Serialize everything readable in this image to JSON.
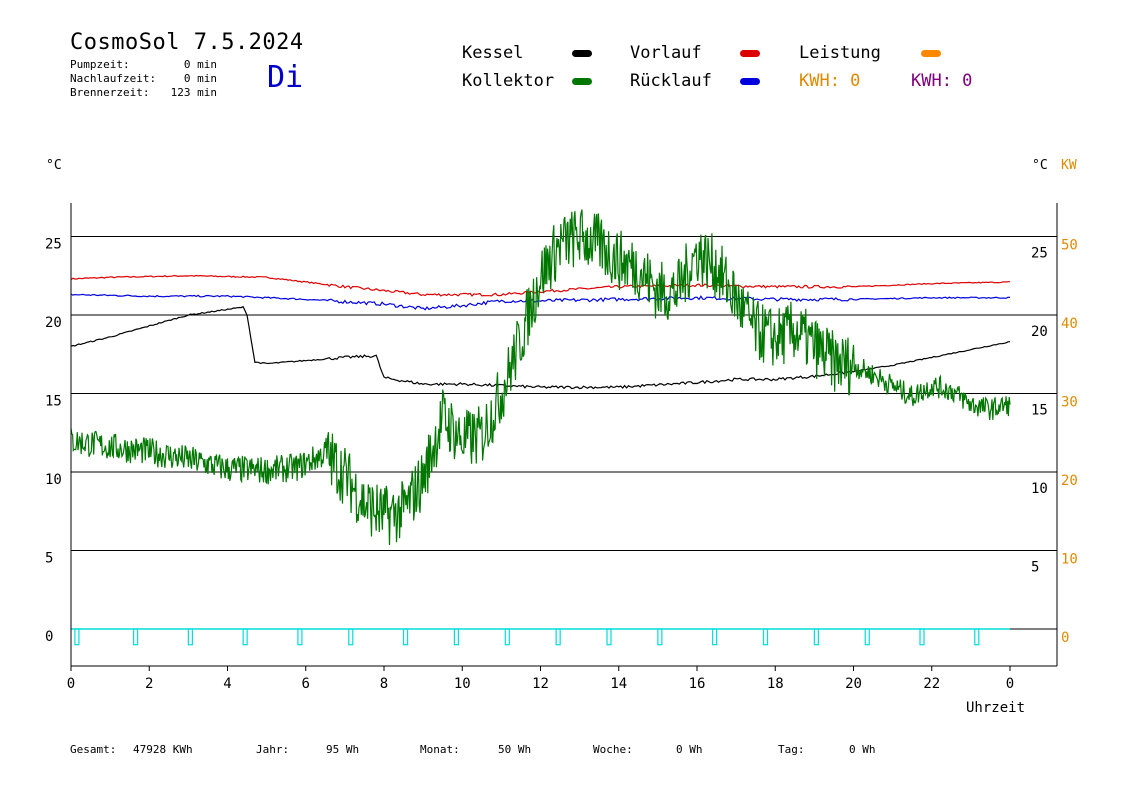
{
  "header": {
    "title": "CosmoSol 7.5.2024",
    "day": "Di",
    "stats": [
      {
        "label": "Pumpzeit:",
        "value": "0 min"
      },
      {
        "label": "Nachlaufzeit:",
        "value": "0 min"
      },
      {
        "label": "Brennerzeit:",
        "value": "123 min"
      }
    ]
  },
  "legend": {
    "kessel": "Kessel",
    "kollektor": "Kollektor",
    "vorlauf": "Vorlauf",
    "ruecklauf": "Rücklauf",
    "leistung": "Leistung",
    "kwh1": "KWH: 0",
    "kwh2": "KWH: 0"
  },
  "colors": {
    "kessel": "#000000",
    "kollektor": "#007700",
    "vorlauf": "#dd0000",
    "ruecklauf": "#0000dd",
    "leistung": "#ff8800",
    "kwh1": "#e08a00",
    "kwh2": "#800080",
    "pump": "#00dddd",
    "orange_axis": "#e08a00"
  },
  "units": {
    "left": "°C",
    "right_c": "°C",
    "right_kw": "KW"
  },
  "footer": {
    "gesamt_label": "Gesamt:",
    "gesamt_value": "47928 KWh",
    "jahr_label": "Jahr:",
    "jahr_value": "95 Wh",
    "monat_label": "Monat:",
    "monat_value": "50 Wh",
    "woche_label": "Woche:",
    "woche_value": "0 Wh",
    "tag_label": "Tag:",
    "tag_value": "0 Wh"
  },
  "chart_data": {
    "type": "line",
    "xlabel": "Uhrzeit",
    "x_ticks": [
      "0",
      "2",
      "4",
      "6",
      "8",
      "10",
      "12",
      "14",
      "16",
      "18",
      "20",
      "22",
      "0"
    ],
    "left_ticks": [
      "0",
      "5",
      "10",
      "15",
      "20",
      "25"
    ],
    "right_c_ticks": [
      "5",
      "10",
      "15",
      "20",
      "25"
    ],
    "right_kw_ticks": [
      "0",
      "10",
      "20",
      "30",
      "40",
      "50"
    ],
    "xlim": [
      0,
      24
    ],
    "ylim": [
      -2,
      27
    ],
    "grid_lines_y": [
      0,
      5,
      10,
      15,
      20,
      25
    ],
    "series": [
      {
        "name": "Vorlauf",
        "color_key": "vorlauf",
        "x": [
          0,
          1,
          3,
          5,
          7,
          9,
          11,
          12,
          14,
          16,
          18,
          20,
          22,
          24
        ],
        "y": [
          22.3,
          22.4,
          22.5,
          22.4,
          21.8,
          21.3,
          21.3,
          21.5,
          21.8,
          21.9,
          21.8,
          21.8,
          22.0,
          22.1
        ]
      },
      {
        "name": "Rücklauf",
        "color_key": "ruecklauf",
        "x": [
          0,
          2,
          4,
          6,
          8,
          9,
          10,
          11,
          12,
          14,
          16,
          18,
          20,
          22,
          24
        ],
        "y": [
          21.3,
          21.2,
          21.2,
          21.0,
          20.7,
          20.4,
          20.6,
          20.9,
          20.9,
          21.0,
          21.1,
          21.0,
          21.0,
          21.1,
          21.1
        ]
      },
      {
        "name": "Kessel",
        "color_key": "kessel",
        "x": [
          0,
          1,
          2,
          3,
          4.4,
          4.5,
          4.7,
          5,
          6,
          7,
          7.8,
          8,
          9,
          10,
          12,
          14,
          16,
          17,
          18,
          19,
          20,
          21,
          22,
          23,
          24
        ],
        "y": [
          18.0,
          18.6,
          19.3,
          20.0,
          20.5,
          20.0,
          17.0,
          16.9,
          17.1,
          17.3,
          17.4,
          16.0,
          15.6,
          15.6,
          15.4,
          15.4,
          15.7,
          15.9,
          15.9,
          16.1,
          16.4,
          16.8,
          17.3,
          17.8,
          18.3
        ]
      },
      {
        "name": "Kollektor",
        "color_key": "kollektor",
        "x": [
          0,
          1,
          2,
          3,
          4,
          5,
          5.8,
          6.5,
          7,
          7.5,
          8,
          8.5,
          9,
          9.5,
          10,
          10.5,
          11,
          11.5,
          12,
          12.5,
          13,
          13.5,
          14,
          14.5,
          15,
          15.5,
          16,
          16.5,
          17,
          17.5,
          18,
          18.5,
          19,
          19.5,
          20,
          20.5,
          21,
          21.5,
          22,
          22.5,
          23,
          23.5,
          24
        ],
        "y": [
          12.0,
          11.6,
          11.3,
          10.8,
          10.2,
          10.1,
          10.3,
          11.2,
          9.8,
          8.0,
          7.2,
          7.5,
          9.6,
          13.5,
          12.0,
          12.3,
          15.0,
          18.5,
          22.5,
          24.5,
          25.0,
          24.5,
          23.5,
          23.0,
          21.5,
          21.5,
          24.0,
          23.0,
          21.0,
          19.0,
          18.5,
          19.0,
          18.0,
          17.0,
          16.8,
          16.2,
          15.5,
          14.8,
          15.5,
          15.2,
          14.3,
          14.0,
          14.3
        ]
      },
      {
        "name": "Pumpe",
        "color_key": "pump",
        "pulses_x": [
          0.1,
          1.6,
          3.0,
          4.4,
          5.8,
          7.1,
          8.5,
          9.8,
          11.1,
          12.4,
          13.7,
          15.0,
          16.4,
          17.7,
          19.0,
          20.3,
          21.7,
          23.1
        ],
        "pulse_height": 1
      }
    ]
  }
}
